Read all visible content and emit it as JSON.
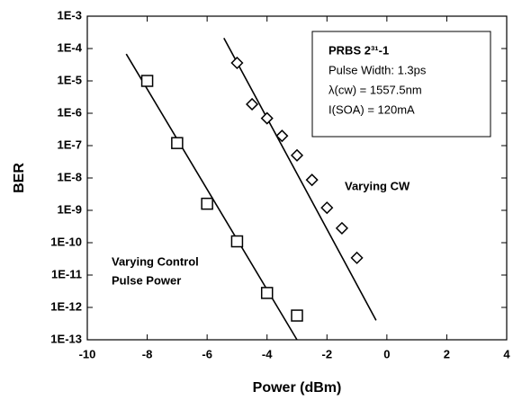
{
  "chart_data": {
    "type": "scatter",
    "x_label": "Power (dBm)",
    "y_label": "BER",
    "xlim": [
      -10,
      4
    ],
    "xticks": [
      -10,
      -8,
      -6,
      -4,
      -2,
      0,
      2,
      4
    ],
    "ylim": [
      1e-13,
      0.001
    ],
    "log_y": true,
    "yticks": [
      {
        "value": 0.001,
        "label": "1E-3"
      },
      {
        "value": 0.0001,
        "label": "1E-4"
      },
      {
        "value": 1e-05,
        "label": "1E-5"
      },
      {
        "value": 1e-06,
        "label": "1E-6"
      },
      {
        "value": 1e-07,
        "label": "1E-7"
      },
      {
        "value": 1e-08,
        "label": "1E-8"
      },
      {
        "value": 1e-09,
        "label": "1E-9"
      },
      {
        "value": 1e-10,
        "label": "1E-10"
      },
      {
        "value": 1e-11,
        "label": "1E-11"
      },
      {
        "value": 1e-12,
        "label": "1E-12"
      },
      {
        "value": 1e-13,
        "label": "1E-13"
      }
    ],
    "series": [
      {
        "marker": "square",
        "color": "#000000",
        "x": [
          -8,
          -7,
          -6,
          -5,
          -4,
          -3
        ],
        "values": [
          1e-05,
          1.2e-07,
          1.6e-09,
          1.1e-10,
          2.8e-12,
          5.6e-13
        ]
      },
      {
        "marker": "diamond",
        "color": "#000000",
        "x": [
          -5,
          -4.5,
          -4,
          -3.5,
          -3,
          -2.5,
          -2,
          -1.5,
          -1
        ],
        "values": [
          3.6e-05,
          1.9e-06,
          7e-07,
          2e-07,
          5e-08,
          8.7e-09,
          1.2e-09,
          2.8e-10,
          3.4e-11
        ]
      }
    ],
    "fits": [
      {
        "x": [
          -8.7,
          -3.0
        ],
        "values": [
          6.8e-05,
          1e-13
        ]
      },
      {
        "x": [
          -5.44,
          -0.36
        ],
        "values": [
          0.00021,
          4e-13
        ]
      }
    ],
    "annotation_box": [
      "PRBS 2³¹-1",
      "Pulse Width: 1.3ps",
      "λ(cw) = 1557.5nm",
      "I(SOA) = 120mA"
    ],
    "series_labels": [
      [
        "Varying Control",
        "Pulse Power"
      ],
      [
        "Varying CW"
      ]
    ]
  }
}
